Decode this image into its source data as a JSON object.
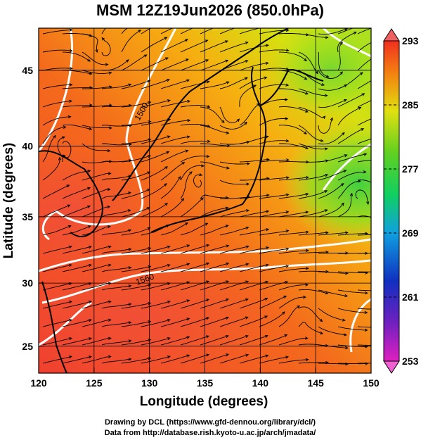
{
  "title": "MSM 12Z19Jun2026 (850.0hPa)",
  "map": {
    "xlabel": "Longitude (degrees)",
    "ylabel": "Latitude  (degrees)",
    "xlim": [
      120,
      150
    ],
    "ylim": [
      22.8,
      47.6
    ],
    "xticks": [
      120,
      125,
      130,
      135,
      140,
      145,
      150
    ],
    "yticks": [
      25,
      30,
      35,
      40,
      45
    ],
    "contour_labels": [
      "1500",
      "1560"
    ]
  },
  "colorbar": {
    "lim": [
      253,
      293
    ],
    "ticks": [
      253,
      261,
      269,
      277,
      285,
      293
    ]
  },
  "footer": [
    "Drawing by DCL (https://www.gfd-dennou.org/library/dcl/)",
    "Data from http://database.rish.kyoto-u.ac.jp/arch/jmadata/"
  ]
}
